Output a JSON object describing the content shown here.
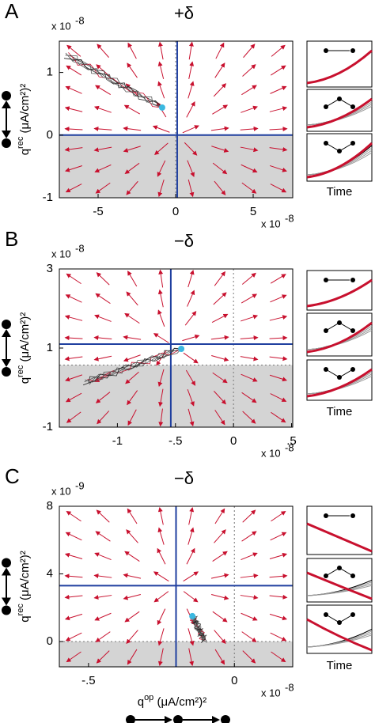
{
  "chart_data": [
    {
      "type": "vector-field",
      "panel_label": "A",
      "title": "+δ",
      "exponent_base": "x 10",
      "y_exponent": "-8",
      "x_exponent": "-8",
      "ylabel": "q",
      "ylabel_sup": "rec",
      "ylabel_unit": " (μA/cm²)²",
      "inset_xlabel": "Time",
      "xlim": [
        -7.5,
        7.55
      ],
      "ylim": [
        -1,
        1.5
      ],
      "xticks": [
        -5,
        0,
        5
      ],
      "yticks": [
        -1,
        0,
        1
      ],
      "nullcline_x": 0.1,
      "nullcline_y": 0,
      "shade_top": 0,
      "start": [
        -0.87,
        0.44
      ]
    },
    {
      "type": "vector-field",
      "panel_label": "B",
      "title": "−δ",
      "exponent_base": "x 10",
      "y_exponent": "-8",
      "x_exponent": "-8",
      "ylabel": "q",
      "ylabel_sup": "rec",
      "ylabel_unit": " (μA/cm²)²",
      "inset_xlabel": "Time",
      "xlim": [
        -1.5,
        0.51
      ],
      "ylim": [
        -1,
        3
      ],
      "xticks": [
        -1,
        {
          "value": -0.5,
          "label": "-.5"
        },
        0,
        {
          "value": 0.5,
          "label": ".5"
        }
      ],
      "yticks": [
        -1,
        1,
        3
      ],
      "nullcline_x": -0.54,
      "nullcline_y": 1.1,
      "shade_top": 0.57,
      "start": [
        -0.45,
        0.98
      ]
    },
    {
      "type": "vector-field",
      "panel_label": "C",
      "title": "−δ",
      "exponent_base": "x 10",
      "y_exponent": "-9",
      "x_exponent": "-8",
      "ylabel": "q",
      "ylabel_sup": "rec",
      "ylabel_unit": " (μA/cm²)²",
      "inset_xlabel": "Time",
      "xlabel": "q",
      "xlabel_sup": "op",
      "xlabel_unit": " (μA/cm²)²",
      "xlim": [
        -0.6,
        0.2
      ],
      "ylim": [
        -1.5,
        8
      ],
      "xticks": [
        {
          "value": -0.5,
          "label": "-.5"
        },
        0
      ],
      "yticks": [
        0,
        4,
        8
      ],
      "nullcline_x": -0.2,
      "nullcline_y": 3.3,
      "shade_top": 0,
      "start": [
        -0.144,
        1.5
      ]
    }
  ]
}
